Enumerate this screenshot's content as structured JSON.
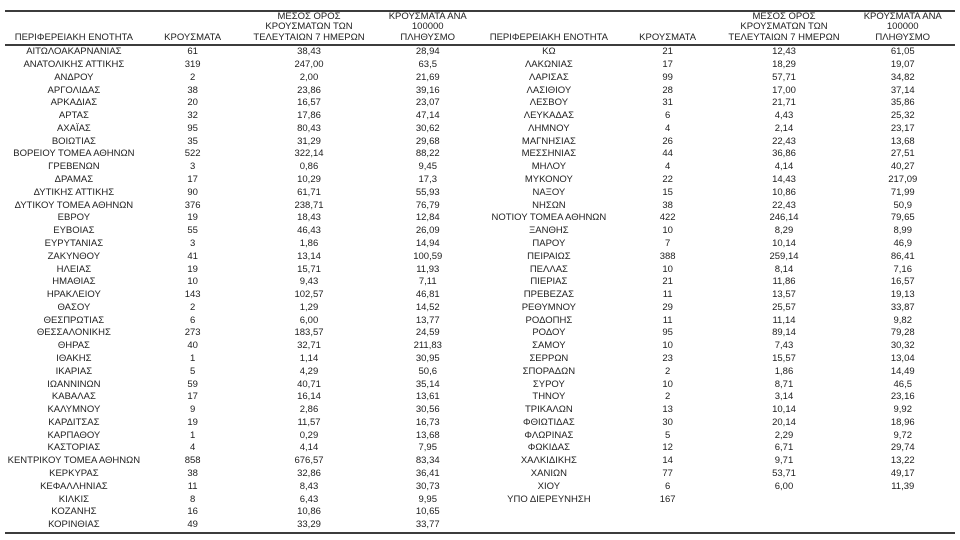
{
  "table": {
    "title_semantic": "covid-cases-by-regional-unit",
    "headers": {
      "region": "ΠΕΡΙΦΕΡΕΙΑΚΗ ΕΝΟΤΗΤΑ",
      "cases": "ΚΡΟΥΣΜΑΤΑ",
      "avg7": "ΜΕΣΟΣ ΟΡΟΣ\nΚΡΟΥΣΜΑΤΩΝ ΤΩΝ\nΤΕΛΕΥΤΑΙΩΝ 7 ΗΜΕΡΩΝ",
      "per100k": "ΚΡΟΥΣΜΑΤΑ ΑΝΑ 100000\nΠΛΗΘΥΣΜΟ"
    },
    "left_rows": [
      [
        "ΑΙΤΩΛΟΑΚΑΡΝΑΝΙΑΣ",
        "61",
        "38,43",
        "28,94"
      ],
      [
        "ΑΝΑΤΟΛΙΚΗΣ ΑΤΤΙΚΗΣ",
        "319",
        "247,00",
        "63,5"
      ],
      [
        "ΑΝΔΡΟΥ",
        "2",
        "2,00",
        "21,69"
      ],
      [
        "ΑΡΓΟΛΙΔΑΣ",
        "38",
        "23,86",
        "39,16"
      ],
      [
        "ΑΡΚΑΔΙΑΣ",
        "20",
        "16,57",
        "23,07"
      ],
      [
        "ΑΡΤΑΣ",
        "32",
        "17,86",
        "47,14"
      ],
      [
        "ΑΧΑΪΑΣ",
        "95",
        "80,43",
        "30,62"
      ],
      [
        "ΒΟΙΩΤΙΑΣ",
        "35",
        "31,29",
        "29,68"
      ],
      [
        "ΒΟΡΕΙΟΥ ΤΟΜΕΑ ΑΘΗΝΩΝ",
        "522",
        "322,14",
        "88,22"
      ],
      [
        "ΓΡΕΒΕΝΩΝ",
        "3",
        "0,86",
        "9,45"
      ],
      [
        "ΔΡΑΜΑΣ",
        "17",
        "10,29",
        "17,3"
      ],
      [
        "ΔΥΤΙΚΗΣ ΑΤΤΙΚΗΣ",
        "90",
        "61,71",
        "55,93"
      ],
      [
        "ΔΥΤΙΚΟΥ ΤΟΜΕΑ ΑΘΗΝΩΝ",
        "376",
        "238,71",
        "76,79"
      ],
      [
        "ΕΒΡΟΥ",
        "19",
        "18,43",
        "12,84"
      ],
      [
        "ΕΥΒΟΙΑΣ",
        "55",
        "46,43",
        "26,09"
      ],
      [
        "ΕΥΡΥΤΑΝΙΑΣ",
        "3",
        "1,86",
        "14,94"
      ],
      [
        "ΖΑΚΥΝΘΟΥ",
        "41",
        "13,14",
        "100,59"
      ],
      [
        "ΗΛΕΙΑΣ",
        "19",
        "15,71",
        "11,93"
      ],
      [
        "ΗΜΑΘΙΑΣ",
        "10",
        "9,43",
        "7,11"
      ],
      [
        "ΗΡΑΚΛΕΙΟΥ",
        "143",
        "102,57",
        "46,81"
      ],
      [
        "ΘΑΣΟΥ",
        "2",
        "1,29",
        "14,52"
      ],
      [
        "ΘΕΣΠΡΩΤΙΑΣ",
        "6",
        "6,00",
        "13,77"
      ],
      [
        "ΘΕΣΣΑΛΟΝΙΚΗΣ",
        "273",
        "183,57",
        "24,59"
      ],
      [
        "ΘΗΡΑΣ",
        "40",
        "32,71",
        "211,83"
      ],
      [
        "ΙΘΑΚΗΣ",
        "1",
        "1,14",
        "30,95"
      ],
      [
        "ΙΚΑΡΙΑΣ",
        "5",
        "4,29",
        "50,6"
      ],
      [
        "ΙΩΑΝΝΙΝΩΝ",
        "59",
        "40,71",
        "35,14"
      ],
      [
        "ΚΑΒΑΛΑΣ",
        "17",
        "16,14",
        "13,61"
      ],
      [
        "ΚΑΛΥΜΝΟΥ",
        "9",
        "2,86",
        "30,56"
      ],
      [
        "ΚΑΡΔΙΤΣΑΣ",
        "19",
        "11,57",
        "16,73"
      ],
      [
        "ΚΑΡΠΑΘΟΥ",
        "1",
        "0,29",
        "13,68"
      ],
      [
        "ΚΑΣΤΟΡΙΑΣ",
        "4",
        "4,14",
        "7,95"
      ],
      [
        "ΚΕΝΤΡΙΚΟΥ ΤΟΜΕΑ ΑΘΗΝΩΝ",
        "858",
        "676,57",
        "83,34"
      ],
      [
        "ΚΕΡΚΥΡΑΣ",
        "38",
        "32,86",
        "36,41"
      ],
      [
        "ΚΕΦΑΛΛΗΝΙΑΣ",
        "11",
        "8,43",
        "30,73"
      ],
      [
        "ΚΙΛΚΙΣ",
        "8",
        "6,43",
        "9,95"
      ],
      [
        "ΚΟΖΑΝΗΣ",
        "16",
        "10,86",
        "10,65"
      ],
      [
        "ΚΟΡΙΝΘΙΑΣ",
        "49",
        "33,29",
        "33,77"
      ]
    ],
    "right_rows": [
      [
        "ΚΩ",
        "21",
        "12,43",
        "61,05"
      ],
      [
        "ΛΑΚΩΝΙΑΣ",
        "17",
        "18,29",
        "19,07"
      ],
      [
        "ΛΑΡΙΣΑΣ",
        "99",
        "57,71",
        "34,82"
      ],
      [
        "ΛΑΣΙΘΙΟΥ",
        "28",
        "17,00",
        "37,14"
      ],
      [
        "ΛΕΣΒΟΥ",
        "31",
        "21,71",
        "35,86"
      ],
      [
        "ΛΕΥΚΑΔΑΣ",
        "6",
        "4,43",
        "25,32"
      ],
      [
        "ΛΗΜΝΟΥ",
        "4",
        "2,14",
        "23,17"
      ],
      [
        "ΜΑΓΝΗΣΙΑΣ",
        "26",
        "22,43",
        "13,68"
      ],
      [
        "ΜΕΣΣΗΝΙΑΣ",
        "44",
        "36,86",
        "27,51"
      ],
      [
        "ΜΗΛΟΥ",
        "4",
        "4,14",
        "40,27"
      ],
      [
        "ΜΥΚΟΝΟΥ",
        "22",
        "14,43",
        "217,09"
      ],
      [
        "ΝΑΞΟΥ",
        "15",
        "10,86",
        "71,99"
      ],
      [
        "ΝΗΣΩΝ",
        "38",
        "22,43",
        "50,9"
      ],
      [
        "ΝΟΤΙΟΥ ΤΟΜΕΑ ΑΘΗΝΩΝ",
        "422",
        "246,14",
        "79,65"
      ],
      [
        "ΞΑΝΘΗΣ",
        "10",
        "8,29",
        "8,99"
      ],
      [
        "ΠΑΡΟΥ",
        "7",
        "10,14",
        "46,9"
      ],
      [
        "ΠΕΙΡΑΙΩΣ",
        "388",
        "259,14",
        "86,41"
      ],
      [
        "ΠΕΛΛΑΣ",
        "10",
        "8,14",
        "7,16"
      ],
      [
        "ΠΙΕΡΙΑΣ",
        "21",
        "11,86",
        "16,57"
      ],
      [
        "ΠΡΕΒΕΖΑΣ",
        "11",
        "13,57",
        "19,13"
      ],
      [
        "ΡΕΘΥΜΝΟΥ",
        "29",
        "25,57",
        "33,87"
      ],
      [
        "ΡΟΔΟΠΗΣ",
        "11",
        "11,14",
        "9,82"
      ],
      [
        "ΡΟΔΟΥ",
        "95",
        "89,14",
        "79,28"
      ],
      [
        "ΣΑΜΟΥ",
        "10",
        "7,43",
        "30,32"
      ],
      [
        "ΣΕΡΡΩΝ",
        "23",
        "15,57",
        "13,04"
      ],
      [
        "ΣΠΟΡΑΔΩΝ",
        "2",
        "1,86",
        "14,49"
      ],
      [
        "ΣΥΡΟΥ",
        "10",
        "8,71",
        "46,5"
      ],
      [
        "ΤΗΝΟΥ",
        "2",
        "3,14",
        "23,16"
      ],
      [
        "ΤΡΙΚΑΛΩΝ",
        "13",
        "10,14",
        "9,92"
      ],
      [
        "ΦΘΙΩΤΙΔΑΣ",
        "30",
        "20,14",
        "18,96"
      ],
      [
        "ΦΛΩΡΙΝΑΣ",
        "5",
        "2,29",
        "9,72"
      ],
      [
        "ΦΩΚΙΔΑΣ",
        "12",
        "6,71",
        "29,74"
      ],
      [
        "ΧΑΛΚΙΔΙΚΗΣ",
        "14",
        "9,71",
        "13,22"
      ],
      [
        "ΧΑΝΙΩΝ",
        "77",
        "53,71",
        "49,17"
      ],
      [
        "ΧΙΟΥ",
        "6",
        "6,00",
        "11,39"
      ],
      [
        "ΥΠΟ ΔΙΕΡΕΥΝΗΣΗ",
        "167",
        "",
        ""
      ]
    ]
  }
}
